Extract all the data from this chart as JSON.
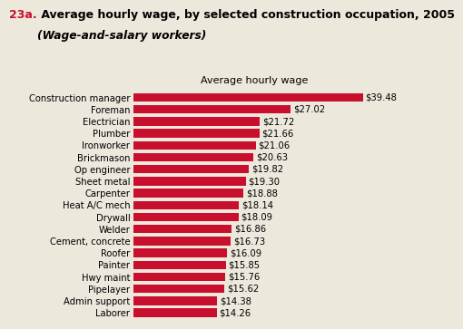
{
  "title_prefix": "23a.",
  "title_main": " Average hourly wage, by selected construction occupation, 2005",
  "title_sub": "(Wage-and-salary workers)",
  "axis_label": "Average hourly wage",
  "bar_color": "#C8102E",
  "categories": [
    "Laborer",
    "Admin support",
    "Pipelayer",
    "Hwy maint",
    "Painter",
    "Roofer",
    "Cement, concrete",
    "Welder",
    "Drywall",
    "Heat A/C mech",
    "Carpenter",
    "Sheet metal",
    "Op engineer",
    "Brickmason",
    "Ironworker",
    "Plumber",
    "Electrician",
    "Foreman",
    "Construction manager"
  ],
  "values": [
    14.26,
    14.38,
    15.62,
    15.76,
    15.85,
    16.09,
    16.73,
    16.86,
    18.09,
    18.14,
    18.88,
    19.3,
    19.82,
    20.63,
    21.06,
    21.66,
    21.72,
    27.02,
    39.48
  ],
  "labels": [
    "$14.26",
    "$14.38",
    "$15.62",
    "$15.76",
    "$15.85",
    "$16.09",
    "$16.73",
    "$16.86",
    "$18.09",
    "$18.14",
    "$18.88",
    "$19.30",
    "$19.82",
    "$20.63",
    "$21.06",
    "$21.66",
    "$21.72",
    "$27.02",
    "$39.48"
  ],
  "xlim": [
    0,
    46
  ],
  "background_color": "#ede8dc",
  "title_color_prefix": "#C8102E",
  "title_color_main": "#000000",
  "label_fontsize": 7.2,
  "value_fontsize": 7.2,
  "title_fontsize": 9.0,
  "subtitle_fontsize": 8.8,
  "axis_label_fontsize": 8.0
}
